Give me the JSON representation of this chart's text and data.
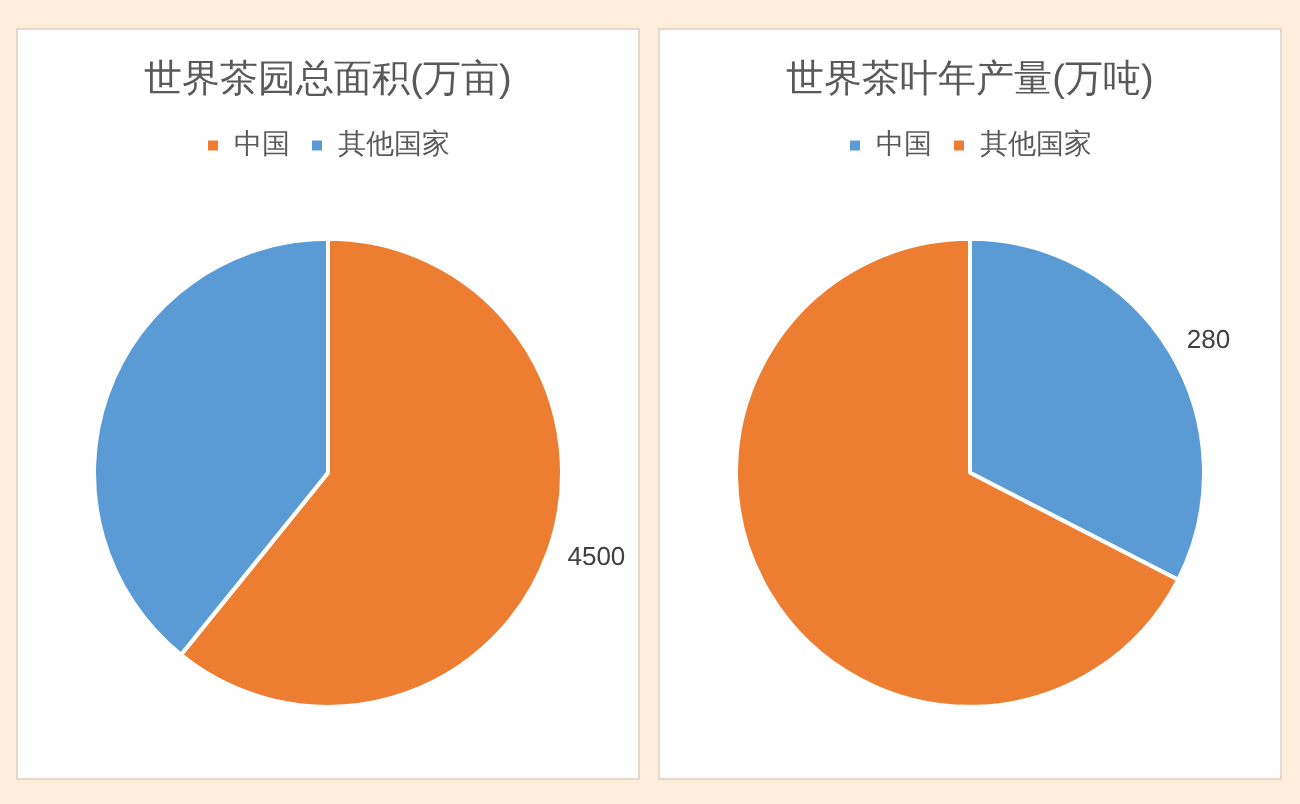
{
  "chart_data": [
    {
      "type": "pie",
      "title": "世界茶园总面积(万亩)",
      "categories": [
        "中国",
        "其他国家"
      ],
      "values": [
        4500,
        2900
      ],
      "colors": [
        "#ed7d31",
        "#5b9bd5"
      ],
      "value_labels": [
        "4500",
        null
      ],
      "legend": "top"
    },
    {
      "type": "pie",
      "title": "世界茶叶年产量(万吨)",
      "categories": [
        "中国",
        "其他国家"
      ],
      "values": [
        280,
        580
      ],
      "colors": [
        "#5b9bd5",
        "#ed7d31"
      ],
      "value_labels": [
        "280",
        null
      ],
      "legend": "top"
    }
  ]
}
